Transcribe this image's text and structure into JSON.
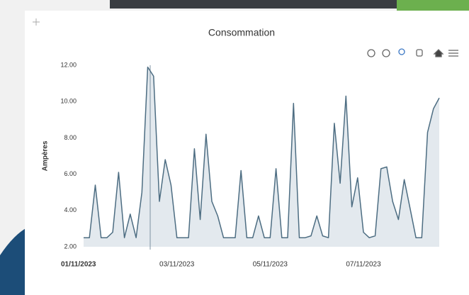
{
  "chart_data": {
    "type": "line",
    "title": "Consommation",
    "y_label": "Ampères",
    "x": [
      "2023-11-01T00:00",
      "2023-11-01T03:00",
      "2023-11-01T06:00",
      "2023-11-01T09:00",
      "2023-11-01T12:00",
      "2023-11-01T15:00",
      "2023-11-01T18:00",
      "2023-11-01T21:00",
      "2023-11-02T00:00",
      "2023-11-02T03:00",
      "2023-11-02T06:00",
      "2023-11-02T09:00",
      "2023-11-02T12:00",
      "2023-11-02T15:00",
      "2023-11-02T18:00",
      "2023-11-02T21:00",
      "2023-11-03T00:00",
      "2023-11-03T03:00",
      "2023-11-03T06:00",
      "2023-11-03T09:00",
      "2023-11-03T12:00",
      "2023-11-03T15:00",
      "2023-11-03T18:00",
      "2023-11-03T21:00",
      "2023-11-04T00:00",
      "2023-11-04T03:00",
      "2023-11-04T06:00",
      "2023-11-04T09:00",
      "2023-11-04T12:00",
      "2023-11-04T15:00",
      "2023-11-04T18:00",
      "2023-11-04T21:00",
      "2023-11-05T00:00",
      "2023-11-05T03:00",
      "2023-11-05T06:00",
      "2023-11-05T09:00",
      "2023-11-05T12:00",
      "2023-11-05T15:00",
      "2023-11-05T18:00",
      "2023-11-05T21:00",
      "2023-11-06T00:00",
      "2023-11-06T03:00",
      "2023-11-06T06:00",
      "2023-11-06T09:00",
      "2023-11-06T12:00",
      "2023-11-06T15:00",
      "2023-11-06T18:00",
      "2023-11-06T21:00",
      "2023-11-07T00:00",
      "2023-11-07T03:00",
      "2023-11-07T06:00",
      "2023-11-07T09:00",
      "2023-11-07T12:00",
      "2023-11-07T15:00",
      "2023-11-07T18:00",
      "2023-11-07T21:00",
      "2023-11-08T00:00",
      "2023-11-08T03:00",
      "2023-11-08T06:00",
      "2023-11-08T09:00",
      "2023-11-08T12:00",
      "2023-11-08T15:00"
    ],
    "series": [
      {
        "name": "Ampères",
        "color": "#4d6d82",
        "fill": "#e3e9ee",
        "values": [
          2.5,
          2.5,
          5.4,
          2.5,
          2.5,
          2.8,
          6.1,
          2.5,
          3.8,
          2.5,
          5.0,
          11.9,
          11.4,
          4.5,
          6.8,
          5.4,
          2.5,
          2.5,
          2.5,
          7.4,
          3.5,
          8.2,
          4.5,
          3.7,
          2.5,
          2.5,
          2.5,
          6.2,
          2.5,
          2.5,
          3.7,
          2.5,
          2.5,
          6.3,
          2.5,
          2.5,
          9.9,
          2.5,
          2.5,
          2.6,
          3.7,
          2.6,
          2.5,
          8.8,
          5.5,
          10.3,
          4.2,
          5.8,
          2.8,
          2.5,
          2.6,
          6.3,
          6.4,
          4.5,
          3.5,
          5.7,
          4.1,
          2.5,
          2.5,
          8.3,
          9.6,
          10.2
        ]
      }
    ],
    "xlim": [
      "2023-11-01T00:00",
      "2023-11-08T15:00"
    ],
    "xticks": [
      {
        "value": "2023-11-01T00:00",
        "label": "01/11/2023"
      },
      {
        "value": "2023-11-03T00:00",
        "label": "03/11/2023"
      },
      {
        "value": "2023-11-05T00:00",
        "label": "05/11/2023"
      },
      {
        "value": "2023-11-07T00:00",
        "label": "07/11/2023"
      }
    ],
    "ylim": [
      2,
      12
    ],
    "yticks": [
      {
        "value": 2,
        "label": "2.00"
      },
      {
        "value": 4,
        "label": "4.00"
      },
      {
        "value": 6,
        "label": "6.00"
      },
      {
        "value": 8,
        "label": "8.00"
      },
      {
        "value": 10,
        "label": "10.00"
      },
      {
        "value": 12,
        "label": "12.00"
      }
    ],
    "grid": false
  }
}
